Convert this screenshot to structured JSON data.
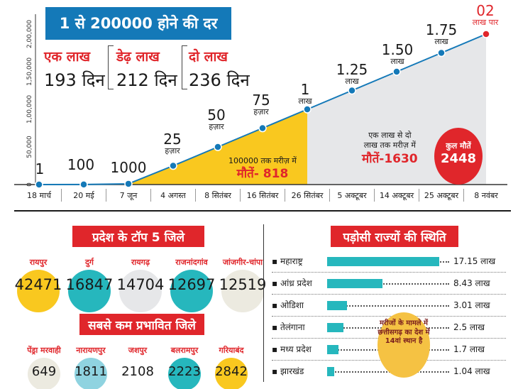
{
  "title": "1 से 200000 होने की दर",
  "colors": {
    "accent_blue": "#1479b8",
    "red": "#e0262b",
    "yellow": "#f9c81f",
    "grey_area": "#e6e7e9",
    "teal_bar": "#26b7bd"
  },
  "stats": [
    {
      "label": "एक लाख",
      "days": "193 दिन"
    },
    {
      "label": "डेढ़ लाख",
      "days": "212 दिन"
    },
    {
      "label": "दो लाख",
      "days": "236 दिन"
    }
  ],
  "milestones": [
    {
      "value": "1",
      "unit": ""
    },
    {
      "value": "100",
      "unit": ""
    },
    {
      "value": "1000",
      "unit": ""
    },
    {
      "value": "25",
      "unit": "हज़ार"
    },
    {
      "value": "50",
      "unit": "हज़ार"
    },
    {
      "value": "75",
      "unit": "हज़ार"
    },
    {
      "value": "1",
      "unit": "लाख"
    },
    {
      "value": "1.25",
      "unit": "लाख"
    },
    {
      "value": "1.50",
      "unit": "लाख"
    },
    {
      "value": "1.75",
      "unit": "लाख"
    },
    {
      "value": "02",
      "unit": "लाख पार"
    }
  ],
  "notes": {
    "yellow_line": "100000 तक मरीज़ में",
    "yellow_deaths": "मौतें- 818",
    "grey_line1": "एक लाख से दो",
    "grey_line2": "लाख तक मरीज़ में",
    "grey_deaths": "मौतें-1630",
    "total_label": "कुल मौतें",
    "total_value": "2448"
  },
  "chart_data": {
    "type": "area",
    "title": "1 से 200000 होने की दर",
    "categories": [
      "18 मार्च",
      "20 मई",
      "7 जून",
      "4 अगस्त",
      "8 सितंबर",
      "16 सितंबर",
      "26 सितंबर",
      "5 अक्टूबर",
      "14 अक्टूबर",
      "25 अक्टूबर",
      "8 नवंबर"
    ],
    "series": [
      {
        "values": [
          1,
          100,
          1000,
          25000,
          50000,
          75000,
          100000,
          125000,
          150000,
          175000,
          200000
        ]
      }
    ],
    "yticks": [
      "0",
      "50,000",
      "1,00,000",
      "1,50,000",
      "2,00,000"
    ],
    "ylim": [
      0,
      200000
    ],
    "fills": [
      "yellow",
      "grey"
    ],
    "legend": "none"
  },
  "districts_title": "प्रदेश के टॉप 5 जिले",
  "top_districts": [
    {
      "name": "रायपुर",
      "value": "42471",
      "color": "#f9c81f"
    },
    {
      "name": "दुर्ग",
      "value": "16847",
      "color": "#26b7bd"
    },
    {
      "name": "रायगढ़",
      "value": "14704",
      "color": "#e6e7e9"
    },
    {
      "name": "राजनांदगांव",
      "value": "12697",
      "color": "#26b7bd"
    },
    {
      "name": "जांजगीर-चांपा",
      "value": "12519",
      "color": "#eceae0"
    }
  ],
  "least_title": "सबसे कम प्रभावित जिले",
  "least_districts": [
    {
      "name": "पेंड्रा मरवाही",
      "value": "649",
      "color": "#eceae0"
    },
    {
      "name": "नारायणपुर",
      "value": "1811",
      "color": "#8fd3e0"
    },
    {
      "name": "जशपुर",
      "value": "2108",
      "color": "#ffffff"
    },
    {
      "name": "बलरामपुर",
      "value": "2223",
      "color": "#26b7bd"
    },
    {
      "name": "गरियाबंद",
      "value": "2842",
      "color": "#f9c81f"
    }
  ],
  "states_title": "पड़ोसी राज्यों की स्थिति",
  "states": [
    {
      "name": "महाराष्ट्र",
      "lakh": 17.15,
      "label": "17.15 लाख"
    },
    {
      "name": "आंध्र प्रदेश",
      "lakh": 8.43,
      "label": "8.43 लाख"
    },
    {
      "name": "ओडिशा",
      "lakh": 3.01,
      "label": "3.01 लाख"
    },
    {
      "name": "तेलंगाना",
      "lakh": 2.5,
      "label": "2.5 लाख"
    },
    {
      "name": "मध्य प्रदेश",
      "lakh": 1.7,
      "label": "1.7 लाख"
    },
    {
      "name": "झारखंड",
      "lakh": 1.04,
      "label": "1.04 लाख"
    }
  ],
  "callout": "मरीजों के मामले में छत्तीसगढ़ का देश में 14वां स्थान है"
}
